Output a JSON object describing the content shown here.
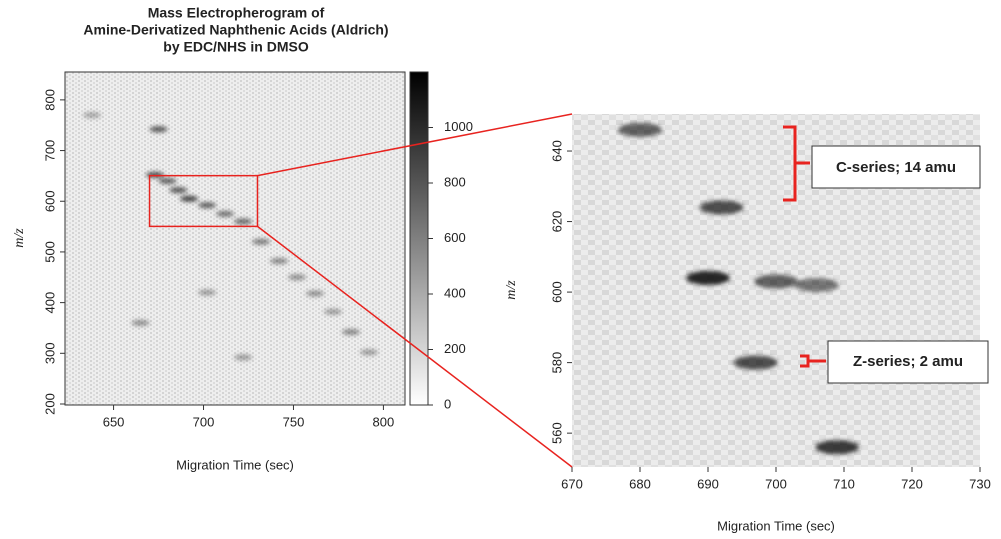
{
  "chart_data": [
    {
      "type": "heatmap",
      "title": [
        "Mass Electropherogram of",
        "Amine-Derivatized Naphthenic Acids (Aldrich)",
        "by EDC/NHS in DMSO"
      ],
      "x_label": "Migration Time (sec)",
      "y_label": "m/z",
      "x": [
        673,
        680,
        686,
        692,
        702,
        712,
        722,
        732,
        742,
        752,
        762,
        772,
        782,
        792,
        675,
        638,
        665,
        702,
        722
      ],
      "y": [
        652,
        640,
        622,
        605,
        592,
        575,
        560,
        520,
        482,
        450,
        418,
        382,
        342,
        302,
        742,
        770,
        360,
        420,
        292
      ],
      "values": [
        800,
        700,
        750,
        850,
        700,
        600,
        650,
        550,
        500,
        450,
        450,
        400,
        500,
        400,
        750,
        350,
        450,
        400,
        400
      ],
      "xlim": [
        623,
        812
      ],
      "xticks": [
        650,
        700,
        750,
        800
      ],
      "ylim": [
        198,
        855
      ],
      "yticks": [
        200,
        300,
        400,
        500,
        600,
        700,
        800
      ],
      "zlim": [
        0,
        1200
      ],
      "zticks": [
        0,
        200,
        400,
        600,
        800,
        1000
      ],
      "colormap": [
        "#ffffff",
        "#000000"
      ],
      "zoom_color": "#e8231f"
    },
    {
      "type": "heatmap",
      "x_label": "Migration Time (sec)",
      "y_label": "m/z",
      "x": [
        680,
        692,
        690,
        700,
        697,
        709,
        706
      ],
      "y": [
        646,
        624,
        604,
        603,
        580,
        556,
        602
      ],
      "values": [
        700,
        800,
        1000,
        700,
        800,
        900,
        600
      ],
      "xlim": [
        670,
        730
      ],
      "xticks": [
        670,
        680,
        690,
        700,
        710,
        720,
        730
      ],
      "ylim": [
        550.4,
        650.5
      ],
      "yticks": [
        560,
        580,
        600,
        620,
        640
      ],
      "colormap": [
        "#ffffff",
        "#000000"
      ],
      "annotations": [
        "C-series; 14 amu",
        "Z-series; 2 amu"
      ]
    }
  ]
}
